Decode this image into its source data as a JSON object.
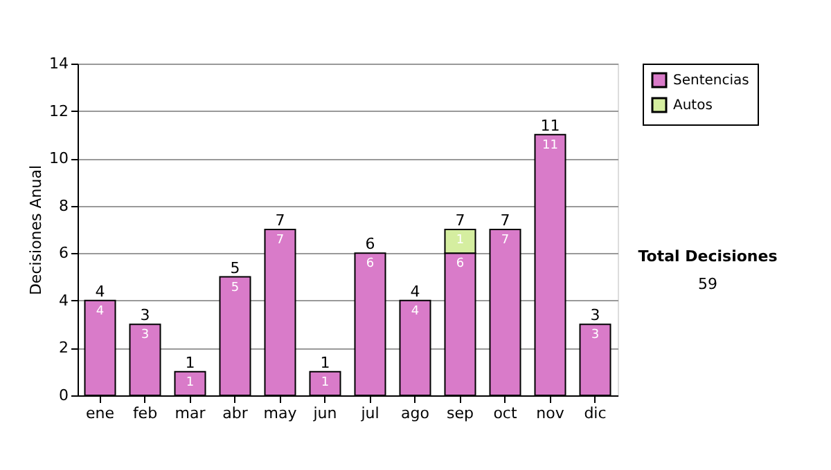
{
  "chart_data": {
    "type": "bar",
    "stacked": true,
    "ylabel": "Decisiones Anual",
    "categories": [
      "ene",
      "feb",
      "mar",
      "abr",
      "may",
      "jun",
      "jul",
      "ago",
      "sep",
      "oct",
      "nov",
      "dic"
    ],
    "series": [
      {
        "name": "Sentencias",
        "color": "#d97bc9",
        "values": [
          4,
          3,
          1,
          5,
          7,
          1,
          6,
          4,
          6,
          7,
          11,
          3
        ],
        "value_labels": [
          "4",
          "3",
          "1",
          "5",
          "7",
          "1",
          "6",
          "4",
          "6",
          "7",
          "11",
          "3"
        ]
      },
      {
        "name": "Autos",
        "color": "#d5eea0",
        "values": [
          null,
          null,
          null,
          null,
          null,
          null,
          null,
          null,
          1,
          null,
          null,
          null
        ],
        "value_labels": [
          null,
          null,
          null,
          null,
          null,
          null,
          null,
          null,
          "1",
          null,
          null,
          null
        ]
      }
    ],
    "totals": [
      "4",
      "3",
      "1",
      "5",
      "7",
      "1",
      "6",
      "4",
      "7",
      "7",
      "11",
      "3"
    ],
    "ylim": [
      0,
      14
    ],
    "yticks": [
      0,
      2,
      4,
      6,
      8,
      10,
      12,
      14
    ],
    "grid": "y",
    "legend": "right",
    "annotations": [
      "Total Decisiones",
      "59"
    ]
  }
}
